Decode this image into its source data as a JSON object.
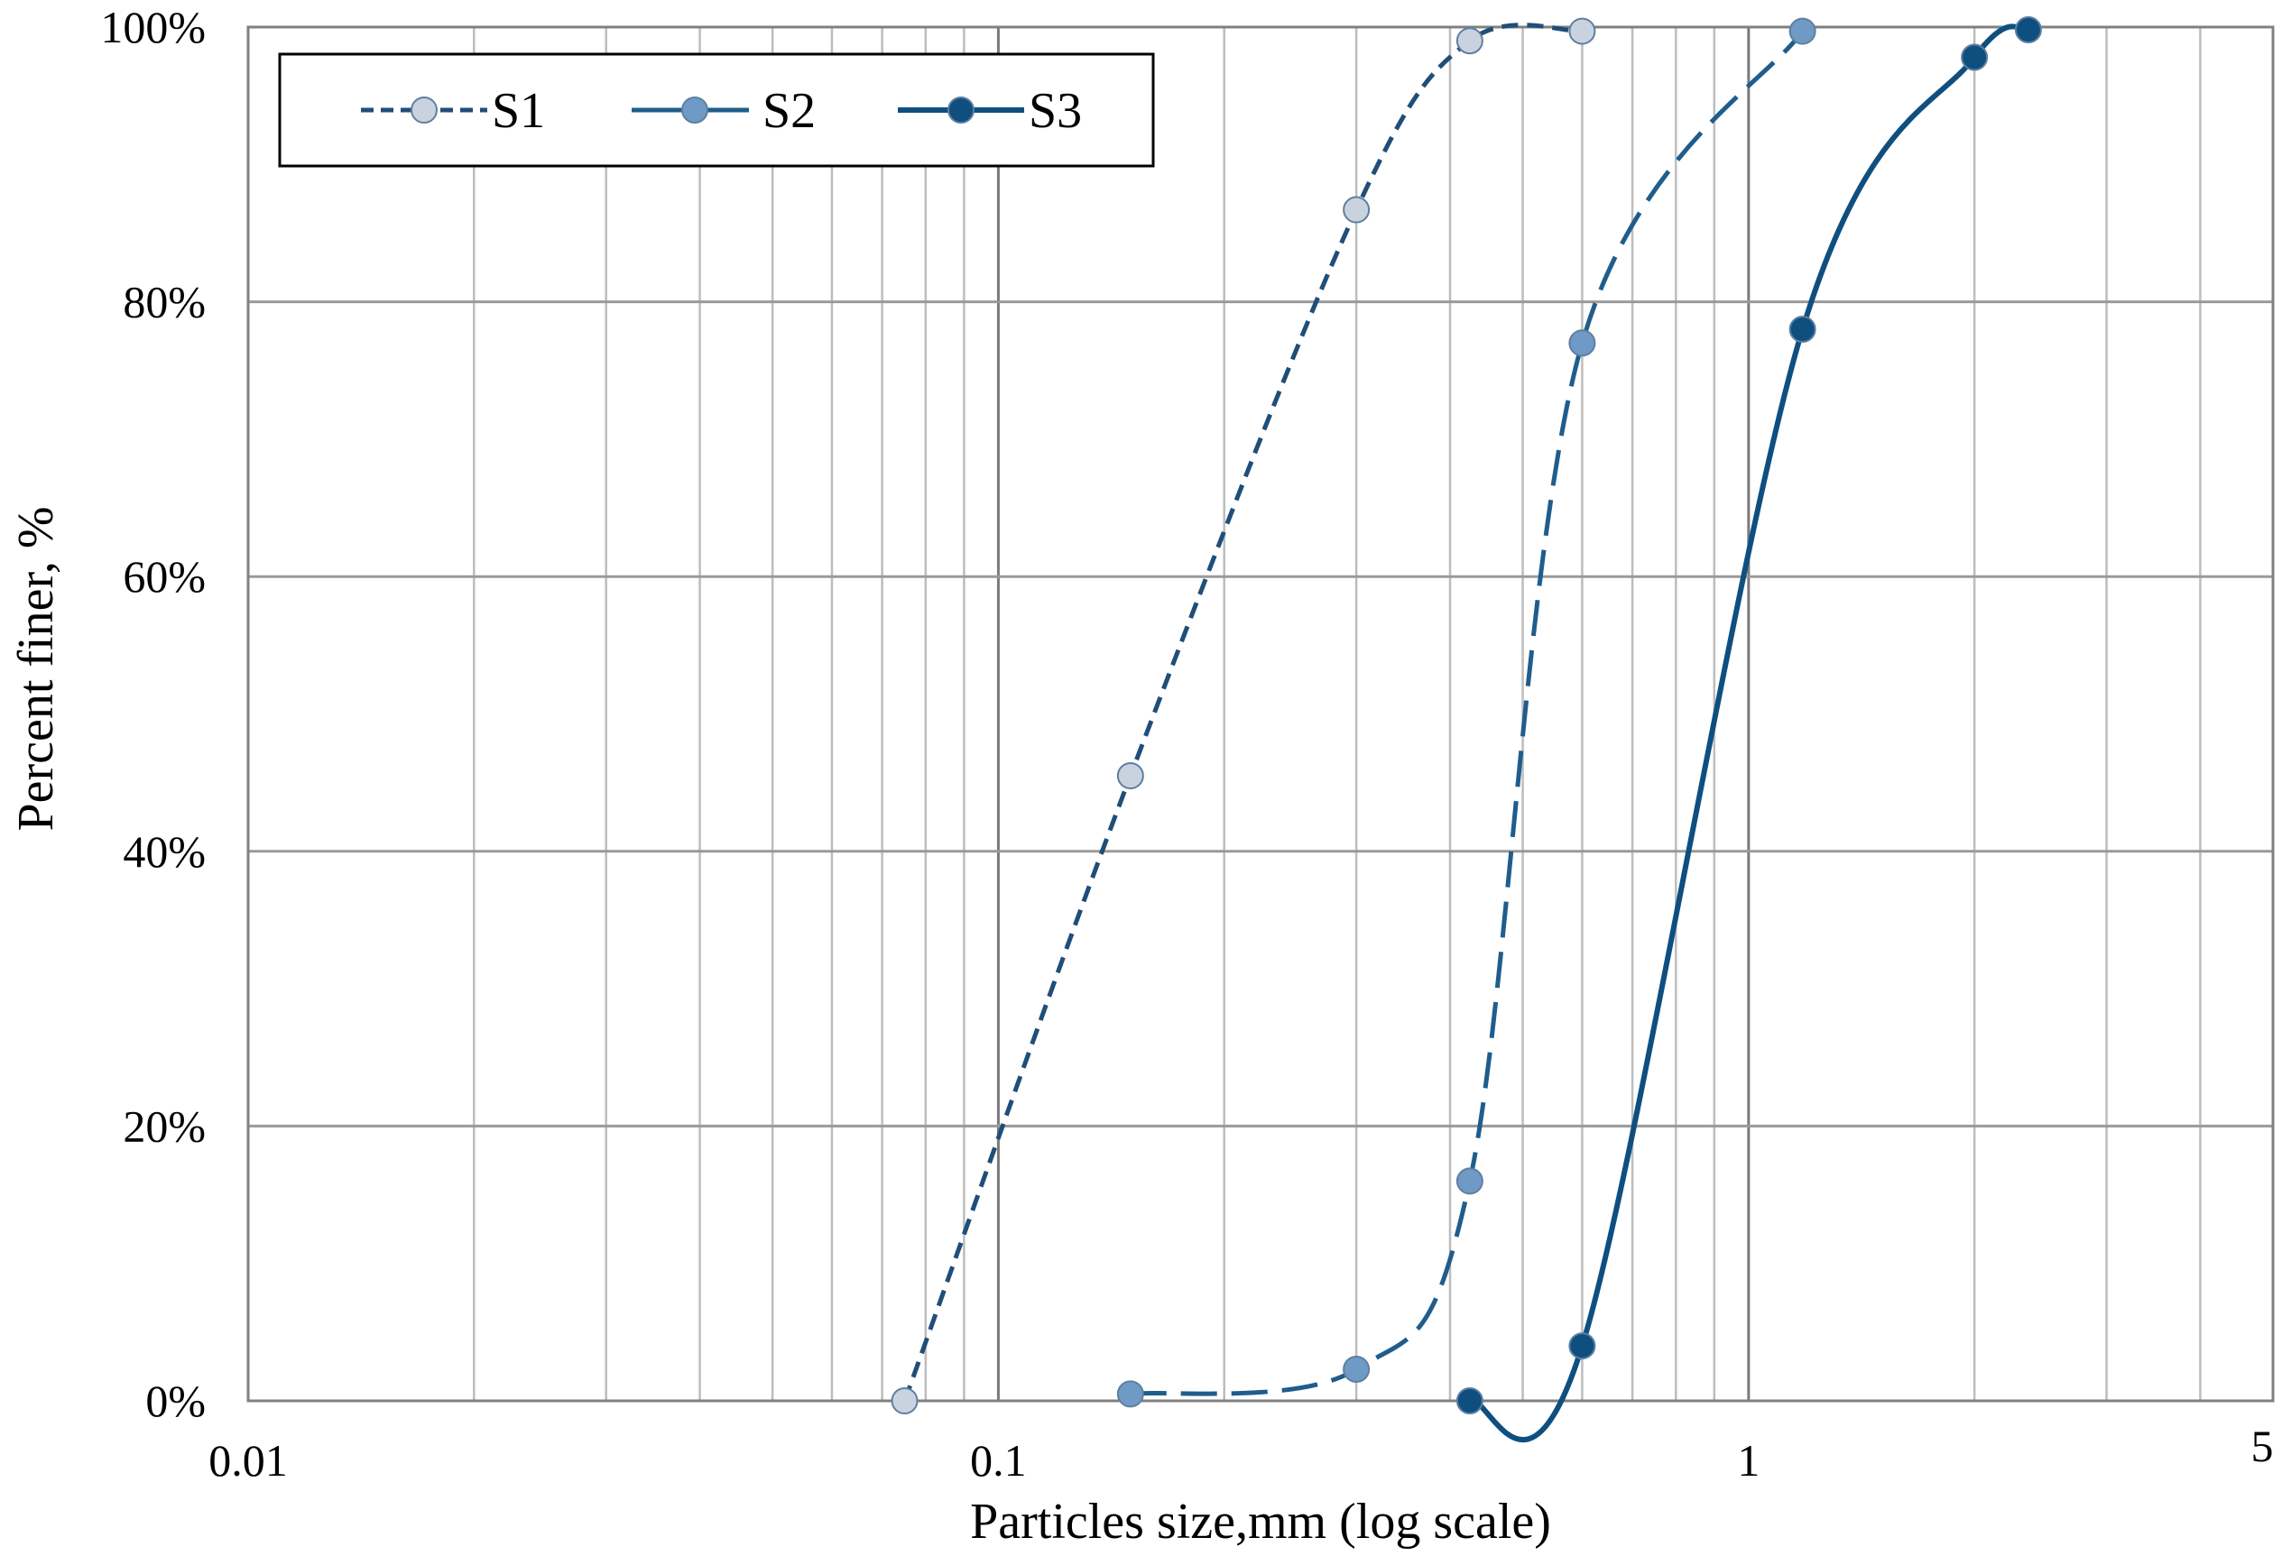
{
  "chart_data": {
    "type": "line",
    "title": "",
    "xlabel": "Particles size,mm (log scale)",
    "ylabel": "Percent finer, %",
    "x_scale": "log",
    "xlim": [
      0.01,
      5
    ],
    "ylim": [
      0,
      100
    ],
    "x_tick_labels": [
      {
        "value": 0.01,
        "label": "0.01"
      },
      {
        "value": 0.1,
        "label": "0.1"
      },
      {
        "value": 1,
        "label": "1"
      },
      {
        "value": 5,
        "label": "5"
      }
    ],
    "y_tick_labels": [
      {
        "value": 0,
        "label": "0%"
      },
      {
        "value": 20,
        "label": "20%"
      },
      {
        "value": 40,
        "label": "40%"
      },
      {
        "value": 60,
        "label": "60%"
      },
      {
        "value": 80,
        "label": "80%"
      },
      {
        "value": 100,
        "label": "100%"
      }
    ],
    "grid": true,
    "legend_position": "top-left",
    "series": [
      {
        "name": "S1",
        "line_style": "dashed",
        "line_color": "#1f4e79",
        "marker_color": "#c9d3e0",
        "points": [
          {
            "x": 0.075,
            "y": 0
          },
          {
            "x": 0.15,
            "y": 45.5
          },
          {
            "x": 0.3,
            "y": 86.7
          },
          {
            "x": 0.425,
            "y": 99
          },
          {
            "x": 0.6,
            "y": 99.7
          }
        ]
      },
      {
        "name": "S2",
        "line_style": "long-dashed",
        "line_color": "#1f5d8c",
        "marker_color": "#6f9ac6",
        "points": [
          {
            "x": 0.15,
            "y": 0.5
          },
          {
            "x": 0.3,
            "y": 2.3
          },
          {
            "x": 0.425,
            "y": 16
          },
          {
            "x": 0.6,
            "y": 77
          },
          {
            "x": 1.18,
            "y": 99.7
          }
        ]
      },
      {
        "name": "S3",
        "line_style": "solid",
        "line_color": "#0f4f80",
        "marker_color": "#0f4f80",
        "points": [
          {
            "x": 0.425,
            "y": 0
          },
          {
            "x": 0.6,
            "y": 4
          },
          {
            "x": 1.18,
            "y": 78
          },
          {
            "x": 2.0,
            "y": 97.8
          },
          {
            "x": 2.36,
            "y": 99.8
          }
        ]
      }
    ]
  }
}
